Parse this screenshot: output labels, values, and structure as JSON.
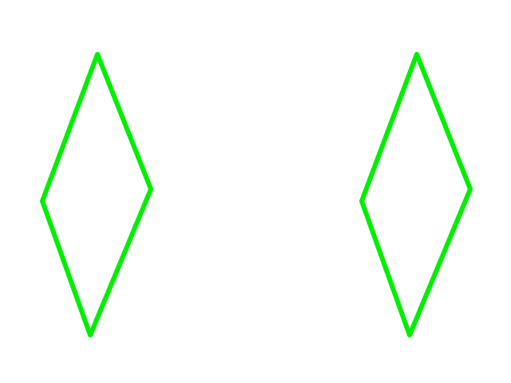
{
  "shapes": [
    {
      "name": "left-diamond",
      "kind": "diamond",
      "stroke_color": "#00ee00"
    },
    {
      "name": "right-diamond",
      "kind": "diamond",
      "stroke_color": "#00ee00"
    }
  ],
  "colors": {
    "background": "#ffffff"
  }
}
